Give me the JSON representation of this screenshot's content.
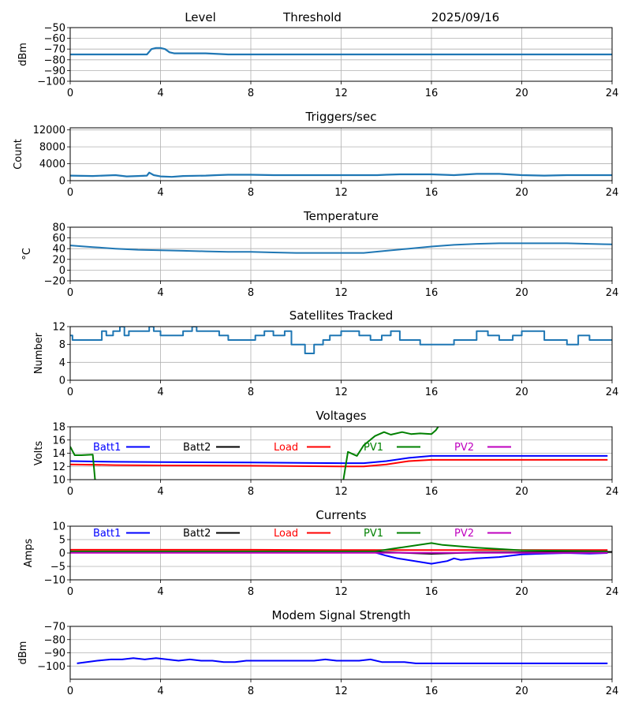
{
  "header": {
    "labels": [
      "Level",
      "Threshold",
      "2025/09/16"
    ]
  },
  "chart_data": [
    {
      "id": "level",
      "type": "line",
      "title": "",
      "xlabel": "",
      "ylabel": "dBm",
      "xlim": [
        0,
        24
      ],
      "ylim": [
        -100,
        -50
      ],
      "xticks": [
        0,
        4,
        8,
        12,
        16,
        20,
        24
      ],
      "yticks": [
        -100,
        -90,
        -80,
        -70,
        -60,
        -50
      ],
      "ytick_labels": [
        "−100",
        "−90",
        "−80",
        "−70",
        "−60",
        "−50"
      ],
      "grid": true,
      "series": [
        {
          "name": "Level",
          "color": "#1f77b4",
          "x": [
            0,
            2,
            3.4,
            3.6,
            3.8,
            4.0,
            4.2,
            4.4,
            4.6,
            5,
            6,
            7,
            8,
            12,
            14,
            16,
            20,
            24
          ],
          "y": [
            -75,
            -75,
            -75,
            -70,
            -69,
            -69,
            -70,
            -73,
            -74,
            -74,
            -74,
            -75,
            -75,
            -75,
            -75,
            -75,
            -75,
            -75
          ]
        }
      ]
    },
    {
      "id": "triggers",
      "type": "line",
      "title": "Triggers/sec",
      "xlabel": "",
      "ylabel": "Count",
      "xlim": [
        0,
        24
      ],
      "ylim": [
        0,
        12500
      ],
      "xticks": [
        0,
        4,
        8,
        12,
        16,
        20,
        24
      ],
      "yticks": [
        0,
        4000,
        8000,
        12000
      ],
      "ytick_labels": [
        "0",
        "4000",
        "8000",
        "12000"
      ],
      "grid": true,
      "series": [
        {
          "name": "Triggers",
          "color": "#1f77b4",
          "x": [
            0,
            1,
            2,
            2.5,
            3,
            3.4,
            3.5,
            3.7,
            4,
            4.5,
            5,
            6,
            6.5,
            7,
            8,
            9,
            10,
            11,
            12,
            13,
            13.6,
            14,
            14.6,
            15,
            16,
            17,
            18,
            19,
            20,
            21,
            22,
            23,
            24
          ],
          "y": [
            1200,
            1100,
            1300,
            1000,
            1100,
            1200,
            1900,
            1300,
            1000,
            900,
            1100,
            1200,
            1300,
            1400,
            1400,
            1300,
            1300,
            1300,
            1300,
            1300,
            1300,
            1400,
            1500,
            1500,
            1500,
            1300,
            1600,
            1600,
            1300,
            1200,
            1300,
            1300,
            1300
          ]
        }
      ]
    },
    {
      "id": "temperature",
      "type": "line",
      "title": "Temperature",
      "xlabel": "",
      "ylabel": "°C",
      "xlim": [
        0,
        24
      ],
      "ylim": [
        -20,
        80
      ],
      "xticks": [
        0,
        4,
        8,
        12,
        16,
        20,
        24
      ],
      "yticks": [
        -20,
        0,
        20,
        40,
        60,
        80
      ],
      "ytick_labels": [
        "−20",
        "0",
        "20",
        "40",
        "60",
        "80"
      ],
      "grid": true,
      "series": [
        {
          "name": "Temperature",
          "color": "#1f77b4",
          "x": [
            0,
            1,
            2,
            3,
            4,
            5,
            6,
            7,
            8,
            9,
            10,
            11,
            12,
            13,
            14,
            15,
            16,
            17,
            18,
            19,
            20,
            21,
            22,
            23,
            24
          ],
          "y": [
            46,
            43,
            40,
            38,
            37,
            36,
            35,
            34,
            34,
            33,
            32,
            32,
            32,
            32,
            36,
            40,
            44,
            47,
            49,
            50,
            50,
            50,
            50,
            49,
            48
          ]
        }
      ]
    },
    {
      "id": "satellites",
      "type": "line",
      "title": "Satellites Tracked",
      "xlabel": "",
      "ylabel": "Number",
      "xlim": [
        0,
        24
      ],
      "ylim": [
        0,
        12
      ],
      "xticks": [
        0,
        4,
        8,
        12,
        16,
        20,
        24
      ],
      "yticks": [
        0,
        4,
        8,
        12
      ],
      "ytick_labels": [
        "0",
        "4",
        "8",
        "12"
      ],
      "grid": true,
      "series": [
        {
          "name": "Satellites",
          "color": "#1f77b4",
          "x": [
            0,
            0.1,
            0.2,
            0.6,
            1.3,
            1.4,
            1.6,
            1.9,
            2.2,
            2.4,
            2.6,
            3.0,
            3.5,
            3.7,
            4.0,
            4.6,
            5.0,
            5.4,
            5.6,
            6.4,
            6.6,
            7.0,
            7.5,
            8.0,
            8.2,
            8.6,
            9.0,
            9.5,
            9.8,
            10.2,
            10.4,
            10.8,
            11.2,
            11.5,
            12.0,
            12.8,
            13.3,
            13.8,
            14.2,
            14.6,
            15.0,
            15.5,
            16.0,
            16.5,
            17.0,
            17.5,
            18.0,
            18.5,
            19.0,
            19.6,
            20.0,
            20.5,
            21.0,
            21.5,
            22.0,
            22.5,
            23.0,
            23.5,
            24.0
          ],
          "y": [
            10,
            9,
            9,
            9,
            9,
            11,
            10,
            11,
            12,
            10,
            11,
            11,
            12,
            11,
            10,
            10,
            11,
            12,
            11,
            11,
            10,
            9,
            9,
            9,
            10,
            11,
            10,
            11,
            8,
            8,
            6,
            8,
            9,
            10,
            11,
            10,
            9,
            10,
            11,
            9,
            9,
            8,
            8,
            8,
            9,
            9,
            11,
            10,
            9,
            10,
            11,
            11,
            9,
            9,
            8,
            10,
            9,
            9,
            9
          ]
        }
      ]
    },
    {
      "id": "voltages",
      "type": "line",
      "title": "Voltages",
      "xlabel": "",
      "ylabel": "Volts",
      "xlim": [
        0,
        24
      ],
      "ylim": [
        10,
        18
      ],
      "xticks": [
        0,
        4,
        8,
        12,
        16,
        20,
        24
      ],
      "yticks": [
        10,
        12,
        14,
        16,
        18
      ],
      "ytick_labels": [
        "10",
        "12",
        "14",
        "16",
        "18"
      ],
      "grid": true,
      "legend": "top-inside",
      "series": [
        {
          "name": "Batt1",
          "color": "#0000ff",
          "x": [
            0,
            2,
            4,
            8,
            12,
            13,
            14,
            15,
            16,
            18,
            20,
            22,
            23.8
          ],
          "y": [
            12.8,
            12.7,
            12.65,
            12.6,
            12.5,
            12.5,
            12.8,
            13.3,
            13.6,
            13.6,
            13.6,
            13.6,
            13.6
          ]
        },
        {
          "name": "Batt2",
          "color": "#000000",
          "x": [],
          "y": []
        },
        {
          "name": "Load",
          "color": "#ff0000",
          "x": [
            0,
            2,
            4,
            8,
            12,
            13,
            14,
            15,
            16,
            18,
            20,
            22,
            23.8
          ],
          "y": [
            12.3,
            12.2,
            12.15,
            12.1,
            12.0,
            12.0,
            12.3,
            12.8,
            13.0,
            13.0,
            13.0,
            13.0,
            13.0
          ]
        },
        {
          "name": "PV1",
          "color": "#008000",
          "x": [
            0,
            0.2,
            0.5,
            1.0,
            1.1,
            11.9,
            12.1,
            12.3,
            12.7,
            13.0,
            13.5,
            13.9,
            14.2,
            14.7,
            15.1,
            15.5,
            16.0,
            16.2,
            16.4
          ],
          "y": [
            15.0,
            13.7,
            13.7,
            13.8,
            10.0,
            null,
            10.0,
            14.2,
            13.6,
            15.2,
            16.6,
            17.2,
            16.8,
            17.2,
            16.9,
            17.0,
            16.9,
            17.5,
            18.5
          ]
        },
        {
          "name": "PV2",
          "color": "#bf00bf",
          "x": [],
          "y": []
        }
      ]
    },
    {
      "id": "currents",
      "type": "line",
      "title": "Currents",
      "xlabel": "",
      "ylabel": "Amps",
      "xlim": [
        0,
        24
      ],
      "ylim": [
        -10,
        10
      ],
      "xticks": [
        0,
        4,
        8,
        12,
        16,
        20,
        24
      ],
      "yticks": [
        -10,
        -5,
        0,
        5,
        10
      ],
      "ytick_labels": [
        "−10",
        "−5",
        "0",
        "5",
        "10"
      ],
      "grid": true,
      "legend": "top-inside",
      "series": [
        {
          "name": "Batt1",
          "color": "#0000ff",
          "x": [
            0,
            4,
            8,
            12,
            13.5,
            14.0,
            14.5,
            16.0,
            16.7,
            17.0,
            17.3,
            18.0,
            19.0,
            20.0,
            21.0,
            22.0,
            23.0,
            23.8
          ],
          "y": [
            0.3,
            0.3,
            0.3,
            0.3,
            0.2,
            -1.0,
            -2.0,
            -4.0,
            -3.0,
            -2.0,
            -2.6,
            -2.0,
            -1.5,
            -0.5,
            -0.2,
            0,
            -0.2,
            0
          ]
        },
        {
          "name": "Batt2",
          "color": "#000000",
          "x": [
            0,
            4,
            8,
            12,
            14,
            16,
            18,
            20,
            24
          ],
          "y": [
            0.5,
            0.5,
            0.5,
            0.5,
            0.3,
            -0.3,
            0.2,
            0.3,
            0.4
          ]
        },
        {
          "name": "Load",
          "color": "#ff0000",
          "x": [
            0,
            4,
            8,
            12,
            16,
            20,
            23.8
          ],
          "y": [
            1.2,
            1.2,
            1.2,
            1.1,
            1.1,
            1.1,
            1.1
          ]
        },
        {
          "name": "PV1",
          "color": "#008000",
          "x": [
            0,
            4,
            8,
            12,
            13.5,
            14.2,
            16.0,
            16.5,
            18.0,
            19.0,
            20.0,
            22.0,
            23.8
          ],
          "y": [
            0.6,
            0.6,
            0.6,
            0.6,
            0.6,
            1.5,
            3.7,
            3.0,
            2.0,
            1.5,
            1.0,
            0.8,
            0.6
          ]
        },
        {
          "name": "PV2",
          "color": "#bf00bf",
          "x": [
            0,
            4,
            8,
            12,
            16,
            20,
            23.8
          ],
          "y": [
            0.1,
            0.1,
            0.1,
            0.1,
            0.1,
            0.1,
            0.1
          ]
        }
      ]
    },
    {
      "id": "modem",
      "type": "line",
      "title": "Modem Signal Strength",
      "xlabel": "",
      "ylabel": "dBm",
      "xlim": [
        0,
        24
      ],
      "ylim": [
        -110,
        -70
      ],
      "xticks": [
        0,
        4,
        8,
        12,
        16,
        20,
        24
      ],
      "yticks": [
        -100,
        -90,
        -80,
        -70
      ],
      "ytick_labels": [
        "−100",
        "−90",
        "−80",
        "−70"
      ],
      "grid": true,
      "series": [
        {
          "name": "Modem",
          "color": "#0000ff",
          "x": [
            0.3,
            1.2,
            1.8,
            2.3,
            2.8,
            3.3,
            3.8,
            4.3,
            4.8,
            5.3,
            5.8,
            6.3,
            6.8,
            7.3,
            7.8,
            8.3,
            9.3,
            10.3,
            10.8,
            11.3,
            11.8,
            12.3,
            12.8,
            13.3,
            13.8,
            14.8,
            15.3,
            16.3,
            18,
            20,
            22,
            23.8
          ],
          "y": [
            -98,
            -96,
            -95,
            -95,
            -94,
            -95,
            -94,
            -95,
            -96,
            -95,
            -96,
            -96,
            -97,
            -97,
            -96,
            -96,
            -96,
            -96,
            -96,
            -95,
            -96,
            -96,
            -96,
            -95,
            -97,
            -97,
            -98,
            -98,
            -98,
            -98,
            -98,
            -98
          ]
        }
      ]
    }
  ]
}
